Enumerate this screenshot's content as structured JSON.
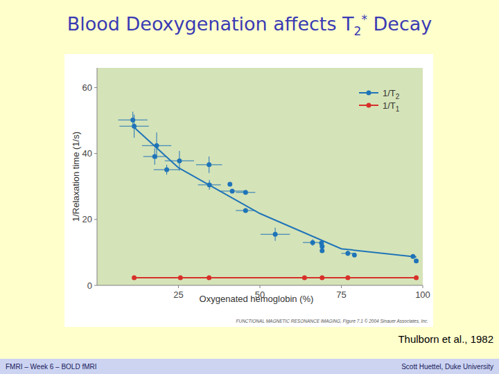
{
  "slide": {
    "title_parts": [
      "Blood Deoxygenation affects T",
      "2",
      "*",
      " Decay"
    ],
    "citation": "Thulborn et al., 1982",
    "footer_left": "FMRI – Week 6 – BOLD fMRI",
    "footer_right": "Scott Huettel, Duke University"
  },
  "chart_data": {
    "type": "scatter",
    "x_label": "Oxygenated hemoglobin (%)",
    "y_label": "1/Relaxation time (1/s)",
    "credit": "FUNCTIONAL MAGNETIC RESONANCE IMAGING, Figure 7.1 © 2004 Sinauer Associates, Inc.",
    "xlim": [
      0,
      100
    ],
    "ylim": [
      0,
      66
    ],
    "xticks": [
      25,
      50,
      75,
      100
    ],
    "yticks": [
      0,
      20,
      40,
      60
    ],
    "grid": false,
    "legend": "upper-right",
    "series": [
      {
        "name": "1/T2",
        "color": "#1f74b8",
        "marker": "circle",
        "line_style": "solid",
        "x": [
          11.0,
          11.4,
          18.3,
          17.7,
          21.4,
          25.3,
          34.4,
          34.5,
          40.8,
          41.5,
          45.6,
          45.6,
          54.7,
          66.2,
          68.9,
          69.1,
          69.1,
          77.0,
          79.0,
          97.0,
          98.0
        ],
        "values": [
          50.2,
          48.3,
          42.4,
          39.1,
          35.1,
          37.8,
          36.6,
          30.5,
          30.7,
          28.6,
          28.2,
          22.7,
          15.5,
          13.0,
          12.8,
          11.8,
          10.5,
          9.7,
          9.2,
          8.8,
          7.4
        ],
        "xerr": [
          4.5,
          4.5,
          4.5,
          3.5,
          4.0,
          4.5,
          4.0,
          3.5,
          0,
          4.0,
          3.0,
          3.0,
          4.5,
          3.0,
          0,
          0,
          0,
          2.0,
          0,
          0,
          0
        ],
        "yerr": [
          2.5,
          3.5,
          4.0,
          2.5,
          1.5,
          3.0,
          2.5,
          1.5,
          0,
          0,
          0,
          0,
          2.0,
          1.0,
          1.0,
          1.0,
          0.5,
          0.8,
          0,
          0,
          0
        ],
        "fit": {
          "x": [
            11,
            25,
            50,
            75,
            98
          ],
          "values": [
            48.3,
            35.7,
            21.8,
            11.1,
            8.6
          ]
        }
      },
      {
        "name": "1/T1",
        "color": "#d7302a",
        "marker": "circle",
        "line_style": "solid",
        "x": [
          11.4,
          25.6,
          34.4,
          63.7,
          69.1,
          77.0,
          98.0
        ],
        "values": [
          2.3,
          2.3,
          2.3,
          2.3,
          2.3,
          2.3,
          2.3
        ]
      }
    ]
  }
}
